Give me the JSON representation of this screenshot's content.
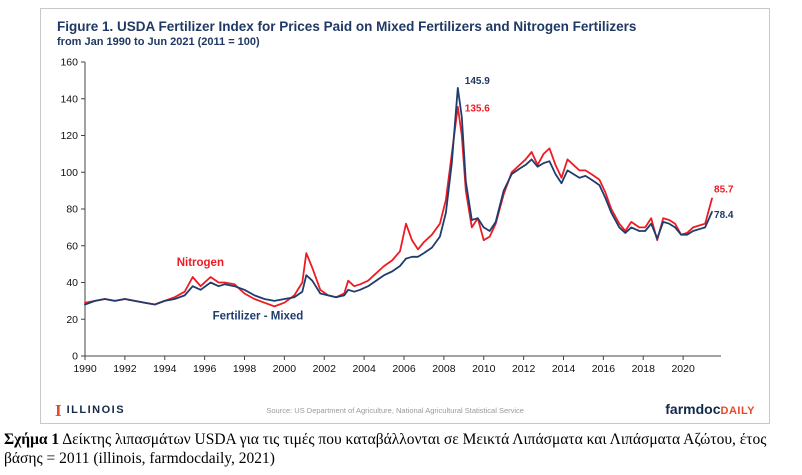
{
  "figure": {
    "title": "Figure 1.  USDA Fertilizer Index for Prices Paid on Mixed Fertilizers and Nitrogen Fertilizers",
    "subtitle": "from Jan 1990 to Jun 2021 (2011 = 100)"
  },
  "footer": {
    "illinois_mark": "I",
    "illinois_label": "ILLINOIS",
    "source": "Source: US Department of Agriculture, National Agricultural Statistical Service",
    "brand_left": "farmdoc",
    "brand_right": "DAILY"
  },
  "caption": {
    "bold": "Σχήμα 1",
    "text": " Δείκτης λιπασμάτων USDA για τις τιμές που καταβάλλονται σε Μεικτά Λιπάσματα και Λιπάσματα Αζώτου,  έτος βάσης = 2011 (illinois, farmdocdaily, 2021)"
  },
  "colors": {
    "title_navy": "#1f3864",
    "nitrogen_red": "#ed1c24",
    "mixed_navy": "#1f3c6e",
    "illinois_orange": "#e84a27",
    "brand_navy": "#13294b",
    "axis": "#444444"
  },
  "chart_data": {
    "type": "line",
    "title": "USDA Fertilizer Index for Prices Paid on Mixed Fertilizers and Nitrogen Fertilizers",
    "xlabel": "",
    "ylabel": "",
    "grid": false,
    "legend_position": "in-plot-labels",
    "xlim": [
      1990,
      2021.9
    ],
    "ylim": [
      0,
      160
    ],
    "yticks": [
      0,
      20,
      40,
      60,
      80,
      100,
      120,
      140,
      160
    ],
    "xticks": [
      1990,
      1992,
      1994,
      1996,
      1998,
      2000,
      2002,
      2004,
      2006,
      2008,
      2010,
      2012,
      2014,
      2016,
      2018,
      2020
    ],
    "x": [
      1990.0,
      1990.5,
      1991.0,
      1991.5,
      1992.0,
      1992.5,
      1993.0,
      1993.5,
      1994.0,
      1994.5,
      1995.0,
      1995.4,
      1995.8,
      1996.3,
      1996.7,
      1997.0,
      1997.5,
      1998.0,
      1998.5,
      1999.0,
      1999.5,
      2000.0,
      2000.5,
      2000.9,
      2001.1,
      2001.4,
      2001.8,
      2002.2,
      2002.6,
      2003.0,
      2003.2,
      2003.5,
      2003.8,
      2004.2,
      2004.6,
      2005.0,
      2005.4,
      2005.8,
      2006.1,
      2006.4,
      2006.7,
      2007.0,
      2007.4,
      2007.8,
      2008.1,
      2008.4,
      2008.7,
      2008.9,
      2009.1,
      2009.4,
      2009.7,
      2010.0,
      2010.3,
      2010.6,
      2011.0,
      2011.4,
      2011.8,
      2012.1,
      2012.4,
      2012.7,
      2013.0,
      2013.3,
      2013.6,
      2013.9,
      2014.2,
      2014.5,
      2014.8,
      2015.1,
      2015.4,
      2015.8,
      2016.1,
      2016.4,
      2016.8,
      2017.1,
      2017.4,
      2017.8,
      2018.1,
      2018.4,
      2018.7,
      2019.0,
      2019.3,
      2019.6,
      2019.9,
      2020.2,
      2020.5,
      2020.8,
      2021.1,
      2021.45
    ],
    "series": [
      {
        "name": "Nitrogen",
        "color": "#ed1c24",
        "width": 1.8,
        "values": [
          29,
          30,
          31,
          30,
          31,
          30,
          29,
          28,
          30,
          32,
          35,
          43,
          38,
          43,
          40,
          40,
          39,
          34,
          31,
          29,
          27,
          29,
          33,
          40,
          56,
          48,
          36,
          33,
          32,
          34,
          41,
          38,
          39,
          41,
          45,
          49,
          52,
          57,
          72,
          63,
          58,
          62,
          66,
          72,
          85,
          110,
          135.6,
          120,
          90,
          70,
          75,
          63,
          65,
          72,
          88,
          100,
          104,
          107,
          111,
          104,
          110,
          113,
          104,
          97,
          107,
          104,
          101,
          101,
          99,
          96,
          89,
          80,
          72,
          68,
          73,
          70,
          70,
          75,
          63,
          75,
          74,
          72,
          66,
          67,
          70,
          71,
          72,
          85.7
        ]
      },
      {
        "name": "Fertilizer - Mixed",
        "color": "#1f3c6e",
        "width": 1.8,
        "values": [
          28,
          30,
          31,
          30,
          31,
          30,
          29,
          28,
          30,
          31,
          33,
          38,
          36,
          40,
          38,
          39,
          38,
          36,
          33,
          31,
          30,
          31,
          32,
          35,
          44,
          41,
          34,
          33,
          32,
          33,
          36,
          35,
          36,
          38,
          41,
          44,
          46,
          49,
          53,
          54,
          54,
          56,
          59,
          65,
          78,
          105,
          145.9,
          130,
          95,
          74,
          75,
          70,
          68,
          73,
          90,
          99,
          102,
          104,
          107,
          103,
          105,
          106,
          99,
          94,
          101,
          99,
          97,
          98,
          96,
          93,
          86,
          78,
          70,
          67,
          70,
          68,
          68,
          72,
          64,
          73,
          72,
          70,
          66,
          66,
          68,
          69,
          70,
          78.4
        ]
      }
    ],
    "annotations": [
      {
        "text": "145.9",
        "x": 2009.05,
        "y": 148,
        "color": "#1f3864",
        "size": 10,
        "anchor": "start"
      },
      {
        "text": "135.6",
        "x": 2009.05,
        "y": 133,
        "color": "#ed1c24",
        "size": 10,
        "anchor": "start"
      },
      {
        "text": "85.7",
        "x": 2021.55,
        "y": 89,
        "color": "#ed1c24",
        "size": 10,
        "anchor": "start"
      },
      {
        "text": "78.4",
        "x": 2021.55,
        "y": 75,
        "color": "#1f3864",
        "size": 10,
        "anchor": "start"
      },
      {
        "text": "Nitrogen",
        "x": 1994.6,
        "y": 49,
        "color": "#ed1c24",
        "size": 11.5,
        "anchor": "start"
      },
      {
        "text": "Fertilizer - Mixed",
        "x": 1996.4,
        "y": 20,
        "color": "#1f3c6e",
        "size": 11.5,
        "anchor": "start"
      }
    ]
  }
}
